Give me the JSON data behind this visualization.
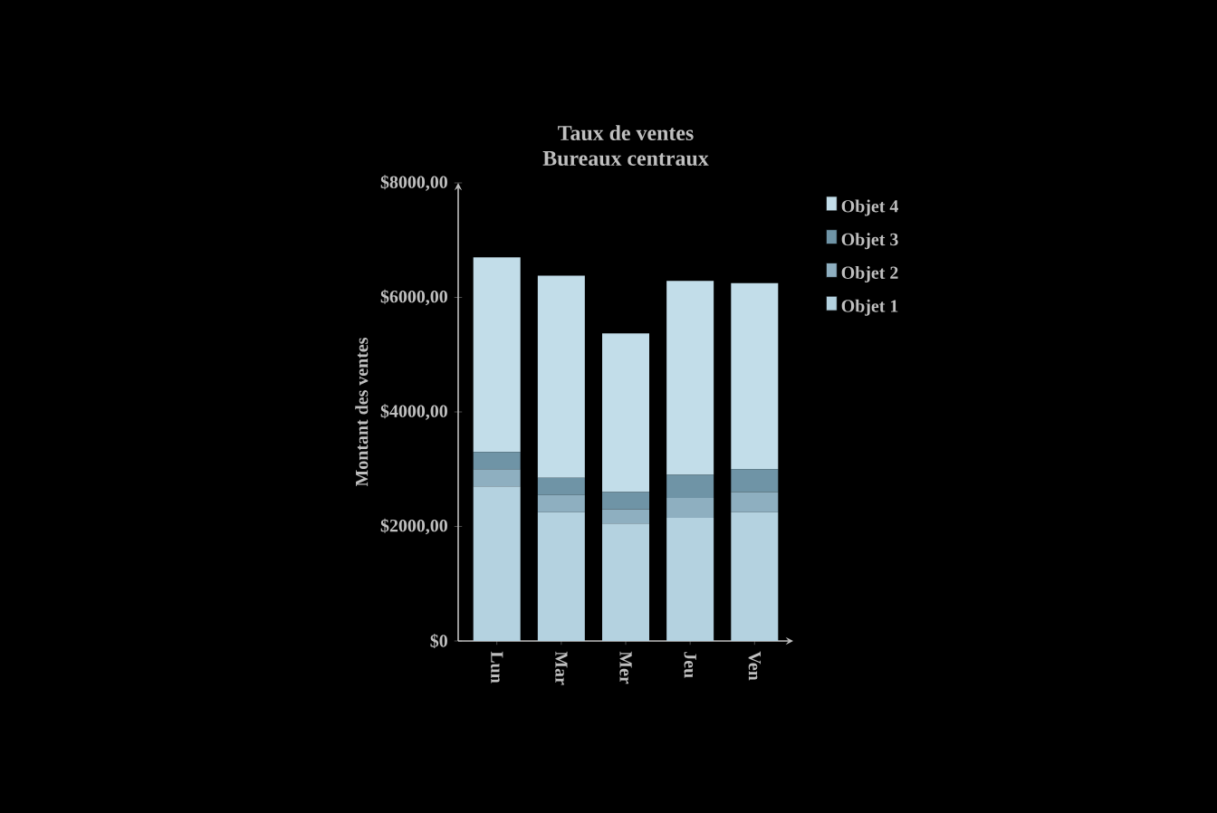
{
  "chart_data": {
    "type": "bar",
    "stacked": true,
    "title": "Taux de ventes",
    "subtitle": "Bureaux centraux",
    "ylabel": "Montant des ventes",
    "categories": [
      "Lun",
      "Mar",
      "Mer",
      "Jeu",
      "Ven"
    ],
    "series": [
      {
        "name": "Objet 1",
        "color": "#b4d2e0",
        "values": [
          2700,
          2250,
          2050,
          2150,
          2250
        ]
      },
      {
        "name": "Objet 2",
        "color": "#8eafc0",
        "values": [
          300,
          300,
          250,
          350,
          350
        ]
      },
      {
        "name": "Objet 3",
        "color": "#6f94a6",
        "values": [
          300,
          300,
          300,
          400,
          400
        ]
      },
      {
        "name": "Objet 4",
        "color": "#c2dde9",
        "values": [
          3400,
          3530,
          2770,
          3390,
          3250
        ]
      }
    ],
    "ylim": [
      0,
      8000
    ],
    "yticks": [
      {
        "value": 0,
        "label": "$0"
      },
      {
        "value": 2000,
        "label": "$2000,00"
      },
      {
        "value": 4000,
        "label": "$4000,00"
      },
      {
        "value": 6000,
        "label": "$6000,00"
      },
      {
        "value": 8000,
        "label": "$8000,00"
      }
    ],
    "legend": "right",
    "grid": false
  }
}
